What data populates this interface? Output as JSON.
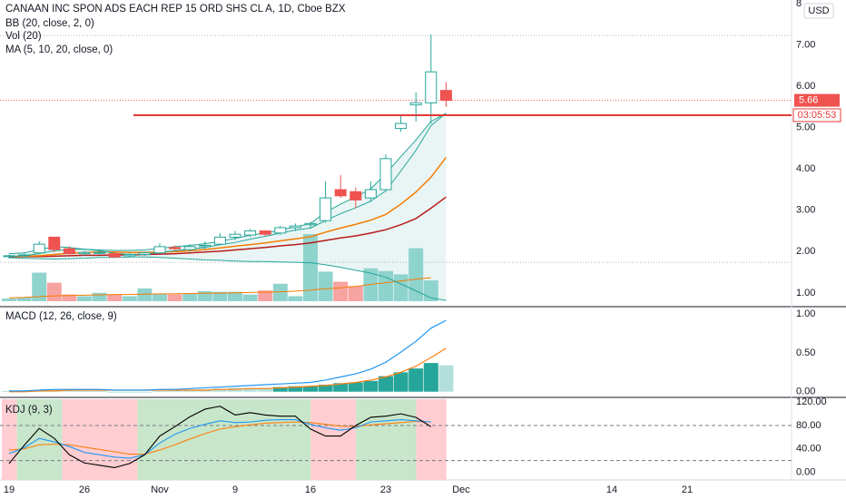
{
  "header": {
    "symbol": "CANAAN INC SPON ADS EACH REP 15 ORD SHS CL A, 1D, Cboe BZX",
    "bb_label": "BB (20, close, 2, 0)",
    "vol_label": "Vol (20)",
    "ma_label": "MA (5, 10, 20, close, 0)"
  },
  "macd_label": "MACD (12, 26, close, 9)",
  "kdj_label": "KDJ (9, 3)",
  "currency": "USD",
  "price_badge": "5.66",
  "countdown_badge": "03:05:53",
  "colors": {
    "up": "#26a69a",
    "down": "#ef5350",
    "vol_up": "#8fd3cd",
    "vol_down": "#f7a3a1",
    "bb": "#26a69a",
    "bb_fill": "#e3f2f1",
    "ma5": "#26a69a",
    "ma10": "#f57c00",
    "ma20": "#b71c1c",
    "macd": "#2196f3",
    "signal": "#ff7f0e",
    "kdj_k": "#2196f3",
    "kdj_d": "#ff7f0e",
    "kdj_j": "#000000",
    "kdj_green": "#c8e6c9",
    "kdj_red": "#ffcdd2",
    "price_line": "#e53935"
  },
  "chart_data": [
    {
      "type": "candlestick",
      "panel": "price",
      "x_tick_labels": [
        "19",
        "26",
        "Nov",
        "9",
        "16",
        "23",
        "Dec",
        "14",
        "21"
      ],
      "x_tick_days": [
        0,
        5,
        10,
        15,
        20,
        25,
        30,
        40,
        45
      ],
      "y_ticks": [
        1.0,
        2.0,
        3.0,
        4.0,
        5.0,
        6.0,
        7.0,
        8.0
      ],
      "y_tick_labels": [
        "1.00",
        "2.00",
        "3.00",
        "4.00",
        "5.00",
        "6.00",
        "7.00",
        "8"
      ],
      "ylim": [
        0.8,
        8.0
      ],
      "horizontal_line": 5.3,
      "last_price": 5.66,
      "candles": [
        {
          "day": 0,
          "o": 1.88,
          "h": 1.93,
          "l": 1.83,
          "c": 1.9
        },
        {
          "day": 1,
          "o": 1.9,
          "h": 1.97,
          "l": 1.86,
          "c": 1.92
        },
        {
          "day": 2,
          "o": 1.97,
          "h": 2.25,
          "l": 1.95,
          "c": 2.18
        },
        {
          "day": 3,
          "o": 2.35,
          "h": 2.35,
          "l": 1.98,
          "c": 2.05
        },
        {
          "day": 4,
          "o": 2.07,
          "h": 2.13,
          "l": 1.9,
          "c": 1.95
        },
        {
          "day": 5,
          "o": 1.95,
          "h": 2.02,
          "l": 1.9,
          "c": 1.98
        },
        {
          "day": 6,
          "o": 1.97,
          "h": 2.02,
          "l": 1.92,
          "c": 1.98
        },
        {
          "day": 7,
          "o": 1.95,
          "h": 1.98,
          "l": 1.85,
          "c": 1.87
        },
        {
          "day": 8,
          "o": 1.9,
          "h": 1.98,
          "l": 1.86,
          "c": 1.93
        },
        {
          "day": 9,
          "o": 1.93,
          "h": 2.0,
          "l": 1.9,
          "c": 1.97
        },
        {
          "day": 10,
          "o": 1.97,
          "h": 2.2,
          "l": 1.95,
          "c": 2.12
        },
        {
          "day": 11,
          "o": 2.1,
          "h": 2.15,
          "l": 2.03,
          "c": 2.07
        },
        {
          "day": 12,
          "o": 2.05,
          "h": 2.18,
          "l": 2.0,
          "c": 2.12
        },
        {
          "day": 13,
          "o": 2.12,
          "h": 2.25,
          "l": 2.05,
          "c": 2.15
        },
        {
          "day": 14,
          "o": 2.18,
          "h": 2.45,
          "l": 2.15,
          "c": 2.35
        },
        {
          "day": 15,
          "o": 2.35,
          "h": 2.5,
          "l": 2.28,
          "c": 2.42
        },
        {
          "day": 16,
          "o": 2.4,
          "h": 2.55,
          "l": 2.35,
          "c": 2.5
        },
        {
          "day": 17,
          "o": 2.5,
          "h": 2.52,
          "l": 2.38,
          "c": 2.42
        },
        {
          "day": 18,
          "o": 2.45,
          "h": 2.62,
          "l": 2.4,
          "c": 2.58
        },
        {
          "day": 19,
          "o": 2.58,
          "h": 2.68,
          "l": 2.5,
          "c": 2.62
        },
        {
          "day": 20,
          "o": 2.65,
          "h": 2.72,
          "l": 2.55,
          "c": 2.68
        },
        {
          "day": 21,
          "o": 2.75,
          "h": 3.7,
          "l": 2.7,
          "c": 3.3
        },
        {
          "day": 22,
          "o": 3.5,
          "h": 3.85,
          "l": 3.3,
          "c": 3.35
        },
        {
          "day": 23,
          "o": 3.45,
          "h": 3.55,
          "l": 3.05,
          "c": 3.25
        },
        {
          "day": 24,
          "o": 3.3,
          "h": 3.7,
          "l": 3.2,
          "c": 3.5
        },
        {
          "day": 25,
          "o": 3.5,
          "h": 4.35,
          "l": 3.45,
          "c": 4.25
        },
        {
          "day": 26,
          "o": 4.98,
          "h": 5.3,
          "l": 4.9,
          "c": 5.1
        },
        {
          "day": 27,
          "o": 5.55,
          "h": 5.85,
          "l": 5.15,
          "c": 5.6
        },
        {
          "day": 28,
          "o": 5.6,
          "h": 7.25,
          "l": 5.1,
          "c": 6.35
        },
        {
          "day": 29,
          "o": 5.9,
          "h": 6.1,
          "l": 5.5,
          "c": 5.66
        }
      ],
      "bb_upper": [
        1.95,
        1.97,
        2.05,
        2.12,
        2.1,
        2.06,
        2.04,
        2.03,
        2.03,
        2.04,
        2.08,
        2.12,
        2.15,
        2.19,
        2.25,
        2.32,
        2.4,
        2.45,
        2.52,
        2.6,
        2.68,
        2.95,
        3.15,
        3.32,
        3.52,
        3.88,
        4.3,
        4.7,
        5.15,
        5.35
      ],
      "bb_lower": [
        1.85,
        1.84,
        1.83,
        1.82,
        1.83,
        1.84,
        1.86,
        1.86,
        1.87,
        1.87,
        1.86,
        1.84,
        1.82,
        1.8,
        1.79,
        1.77,
        1.76,
        1.76,
        1.75,
        1.74,
        1.73,
        1.68,
        1.62,
        1.55,
        1.48,
        1.38,
        1.22,
        1.05,
        0.88,
        0.82
      ],
      "ma5": [
        1.88,
        1.9,
        1.95,
        2.02,
        2.05,
        2.06,
        2.02,
        1.96,
        1.93,
        1.94,
        1.98,
        2.02,
        2.06,
        2.1,
        2.17,
        2.22,
        2.3,
        2.37,
        2.45,
        2.52,
        2.57,
        2.75,
        2.92,
        3.06,
        3.22,
        3.47,
        3.95,
        4.45,
        5.05,
        5.35
      ],
      "ma10": [
        1.88,
        1.89,
        1.9,
        1.93,
        1.96,
        1.98,
        1.99,
        1.99,
        1.98,
        1.98,
        1.99,
        2.0,
        2.02,
        2.05,
        2.09,
        2.13,
        2.17,
        2.21,
        2.26,
        2.31,
        2.36,
        2.47,
        2.57,
        2.66,
        2.76,
        2.9,
        3.15,
        3.44,
        3.8,
        4.28
      ],
      "ma20": [
        1.87,
        1.88,
        1.88,
        1.89,
        1.9,
        1.91,
        1.91,
        1.92,
        1.92,
        1.93,
        1.94,
        1.95,
        1.97,
        1.99,
        2.01,
        2.04,
        2.07,
        2.1,
        2.14,
        2.17,
        2.21,
        2.27,
        2.33,
        2.38,
        2.45,
        2.53,
        2.65,
        2.8,
        3.05,
        3.32
      ],
      "volume": [
        {
          "day": 0,
          "v": 0.08
        },
        {
          "day": 1,
          "v": 0.12
        },
        {
          "day": 2,
          "v": 0.85
        },
        {
          "day": 3,
          "v": 0.55
        },
        {
          "day": 4,
          "v": 0.2
        },
        {
          "day": 5,
          "v": 0.15
        },
        {
          "day": 6,
          "v": 0.25
        },
        {
          "day": 7,
          "v": 0.2
        },
        {
          "day": 8,
          "v": 0.15
        },
        {
          "day": 9,
          "v": 0.38
        },
        {
          "day": 10,
          "v": 0.23
        },
        {
          "day": 11,
          "v": 0.2
        },
        {
          "day": 12,
          "v": 0.22
        },
        {
          "day": 13,
          "v": 0.3
        },
        {
          "day": 14,
          "v": 0.28
        },
        {
          "day": 15,
          "v": 0.28
        },
        {
          "day": 16,
          "v": 0.2
        },
        {
          "day": 17,
          "v": 0.32
        },
        {
          "day": 18,
          "v": 0.52
        },
        {
          "day": 19,
          "v": 0.15
        },
        {
          "day": 20,
          "v": 2.0
        },
        {
          "day": 21,
          "v": 0.88
        },
        {
          "day": 22,
          "v": 0.58
        },
        {
          "day": 23,
          "v": 0.45
        },
        {
          "day": 24,
          "v": 0.98
        },
        {
          "day": 25,
          "v": 0.9
        },
        {
          "day": 26,
          "v": 0.8
        },
        {
          "day": 27,
          "v": 1.58
        },
        {
          "day": 28,
          "v": 0.62
        }
      ],
      "vol_ma": [
        0.1,
        0.11,
        0.14,
        0.16,
        0.17,
        0.18,
        0.19,
        0.2,
        0.2,
        0.21,
        0.22,
        0.22,
        0.23,
        0.24,
        0.24,
        0.25,
        0.26,
        0.27,
        0.28,
        0.3,
        0.33,
        0.37,
        0.4,
        0.44,
        0.5,
        0.55,
        0.6,
        0.66,
        0.7
      ]
    },
    {
      "type": "histogram+line",
      "panel": "macd",
      "y_ticks": [
        0.0,
        0.5,
        1.0
      ],
      "y_tick_labels": [
        "0.00",
        "0.50",
        "1.00"
      ],
      "ylim": [
        -0.05,
        1.05
      ],
      "histogram": [
        0.01,
        0.01,
        0.02,
        0.03,
        0.02,
        0.01,
        0.01,
        0.0,
        0.0,
        0.0,
        0.01,
        0.02,
        0.02,
        0.03,
        0.04,
        0.05,
        0.05,
        0.05,
        0.06,
        0.07,
        0.07,
        0.09,
        0.11,
        0.12,
        0.14,
        0.2,
        0.25,
        0.3,
        0.37,
        0.34
      ],
      "macd": [
        0.01,
        0.01,
        0.02,
        0.03,
        0.03,
        0.03,
        0.03,
        0.02,
        0.02,
        0.02,
        0.03,
        0.03,
        0.04,
        0.05,
        0.06,
        0.07,
        0.08,
        0.09,
        0.1,
        0.11,
        0.12,
        0.15,
        0.19,
        0.23,
        0.29,
        0.38,
        0.51,
        0.65,
        0.82,
        0.92
      ],
      "signal": [
        0.0,
        0.0,
        0.01,
        0.01,
        0.02,
        0.02,
        0.02,
        0.02,
        0.02,
        0.02,
        0.02,
        0.02,
        0.02,
        0.02,
        0.03,
        0.03,
        0.04,
        0.04,
        0.05,
        0.06,
        0.07,
        0.08,
        0.1,
        0.12,
        0.15,
        0.19,
        0.25,
        0.33,
        0.44,
        0.56
      ]
    },
    {
      "type": "line",
      "panel": "kdj",
      "y_ticks": [
        0.0,
        40.0,
        80.0,
        120.0
      ],
      "y_tick_labels": [
        "0.00",
        "40.00",
        "80.00",
        "120.00"
      ],
      "ylim": [
        -10,
        125
      ],
      "dashed_levels": [
        20,
        80
      ],
      "shading": [
        {
          "from": 0,
          "to": 1,
          "color": "red"
        },
        {
          "from": 1,
          "to": 4,
          "color": "green"
        },
        {
          "from": 4,
          "to": 9,
          "color": "red"
        },
        {
          "from": 9,
          "to": 20.5,
          "color": "green"
        },
        {
          "from": 20.5,
          "to": 23.5,
          "color": "red"
        },
        {
          "from": 23.5,
          "to": 27.5,
          "color": "green"
        },
        {
          "from": 27.5,
          "to": 29.5,
          "color": "red"
        }
      ],
      "K": [
        32,
        42,
        58,
        52,
        44,
        34,
        30,
        26,
        24,
        30,
        50,
        65,
        75,
        82,
        88,
        85,
        86,
        89,
        90,
        90,
        82,
        76,
        72,
        76,
        86,
        88,
        90,
        88,
        86
      ],
      "D": [
        38,
        40,
        47,
        48,
        47,
        43,
        39,
        35,
        31,
        31,
        38,
        47,
        57,
        66,
        74,
        78,
        81,
        84,
        85,
        86,
        85,
        82,
        79,
        78,
        81,
        83,
        85,
        87,
        86
      ],
      "J": [
        15,
        46,
        75,
        58,
        30,
        16,
        12,
        8,
        15,
        30,
        62,
        78,
        95,
        108,
        113,
        98,
        102,
        98,
        96,
        96,
        74,
        62,
        62,
        80,
        94,
        96,
        100,
        94,
        78
      ]
    }
  ]
}
